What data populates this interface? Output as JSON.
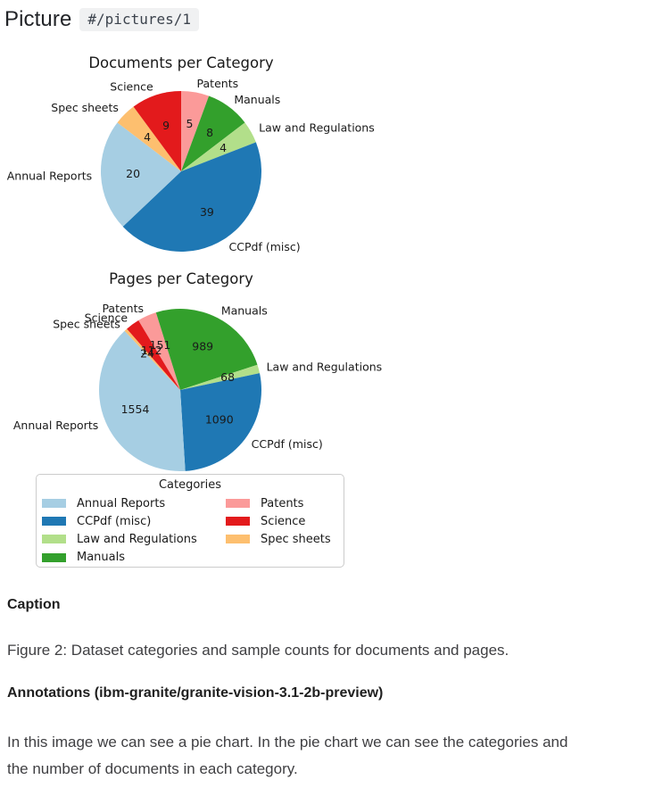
{
  "header": {
    "title": "Picture",
    "ref": "#/pictures/1"
  },
  "chart_data": [
    {
      "type": "pie",
      "title": "Documents per Category",
      "direction": "clockwise",
      "start_angle": 90,
      "slices": [
        {
          "label": "Patents",
          "value": 5,
          "color": "#fb9a99"
        },
        {
          "label": "Manuals",
          "value": 8,
          "color": "#33a02c"
        },
        {
          "label": "Law and Regulations",
          "value": 4,
          "color": "#b2df8a"
        },
        {
          "label": "CCPdf (misc)",
          "value": 39,
          "color": "#1f78b4"
        },
        {
          "label": "Annual Reports",
          "value": 20,
          "color": "#a6cee3"
        },
        {
          "label": "Spec sheets",
          "value": 4,
          "color": "#fdbf6f"
        },
        {
          "label": "Science",
          "value": 9,
          "color": "#e31a1c"
        }
      ]
    },
    {
      "type": "pie",
      "title": "Pages per Category",
      "direction": "clockwise",
      "start_angle": 121,
      "slices": [
        {
          "label": "Patents",
          "value": 151,
          "color": "#fb9a99"
        },
        {
          "label": "Manuals",
          "value": 989,
          "color": "#33a02c"
        },
        {
          "label": "Law and Regulations",
          "value": 68,
          "color": "#b2df8a"
        },
        {
          "label": "CCPdf (misc)",
          "value": 1090,
          "color": "#1f78b4"
        },
        {
          "label": "Annual Reports",
          "value": 1554,
          "color": "#a6cee3"
        },
        {
          "label": "Spec sheets",
          "value": 24,
          "color": "#fdbf6f"
        },
        {
          "label": "Science",
          "value": 112,
          "color": "#e31a1c"
        }
      ]
    }
  ],
  "legend": {
    "title": "Categories",
    "items": [
      {
        "label": "Annual Reports",
        "color": "#a6cee3"
      },
      {
        "label": "CCPdf (misc)",
        "color": "#1f78b4"
      },
      {
        "label": "Law and Regulations",
        "color": "#b2df8a"
      },
      {
        "label": "Manuals",
        "color": "#33a02c"
      },
      {
        "label": "Patents",
        "color": "#fb9a99"
      },
      {
        "label": "Science",
        "color": "#e31a1c"
      },
      {
        "label": "Spec sheets",
        "color": "#fdbf6f"
      }
    ]
  },
  "caption": {
    "heading": "Caption",
    "text": "Figure 2: Dataset categories and sample counts for documents and pages."
  },
  "annotations": {
    "heading": "Annotations (ibm-granite/granite-vision-3.1-2b-preview)",
    "line1": "In this image we can see a pie chart. In the pie chart we can see the categories and",
    "line2": "the number of documents in each category."
  }
}
